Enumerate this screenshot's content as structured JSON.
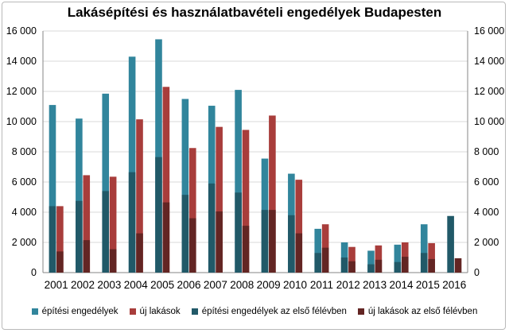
{
  "chart_data": {
    "type": "bar",
    "title": "Lakásépítési és használatbavételi engedélyek Budapesten",
    "categories": [
      "2001",
      "2002",
      "2003",
      "2004",
      "2005",
      "2006",
      "2007",
      "2008",
      "2009",
      "2010",
      "2011",
      "2012",
      "2013",
      "2014",
      "2015",
      "2016"
    ],
    "ylim": [
      0,
      16000
    ],
    "y_ticks": [
      "0",
      "2 000",
      "4 000",
      "6 000",
      "8 000",
      "10 000",
      "12 000",
      "14 000",
      "16 000"
    ],
    "y_tick_values": [
      0,
      2000,
      4000,
      6000,
      8000,
      10000,
      12000,
      14000,
      16000
    ],
    "grid": true,
    "legend_position": "bottom",
    "secondary_y_axis": true,
    "series": [
      {
        "name": "építési engedélyek",
        "color": "#31859c",
        "values": [
          11100,
          10200,
          11850,
          14300,
          15450,
          11500,
          11050,
          12100,
          7550,
          6550,
          2900,
          2000,
          1450,
          1850,
          3200,
          null
        ]
      },
      {
        "name": "új lakások",
        "color": "#a83d3b",
        "values": [
          4400,
          6450,
          6350,
          10150,
          12300,
          8250,
          9650,
          9450,
          10400,
          6150,
          3200,
          1700,
          1800,
          2000,
          1950,
          null
        ]
      },
      {
        "name": "építési engedélyek az első félévben",
        "color": "#215968",
        "values": [
          4400,
          4750,
          5400,
          6650,
          7650,
          5150,
          5900,
          5300,
          4150,
          3800,
          1300,
          1000,
          550,
          700,
          1300,
          3750
        ]
      },
      {
        "name": "új lakások az első félévben",
        "color": "#632523",
        "values": [
          1400,
          2150,
          1550,
          2600,
          4650,
          3600,
          4050,
          3100,
          4150,
          2600,
          1650,
          750,
          850,
          1050,
          900,
          950
        ]
      }
    ]
  }
}
